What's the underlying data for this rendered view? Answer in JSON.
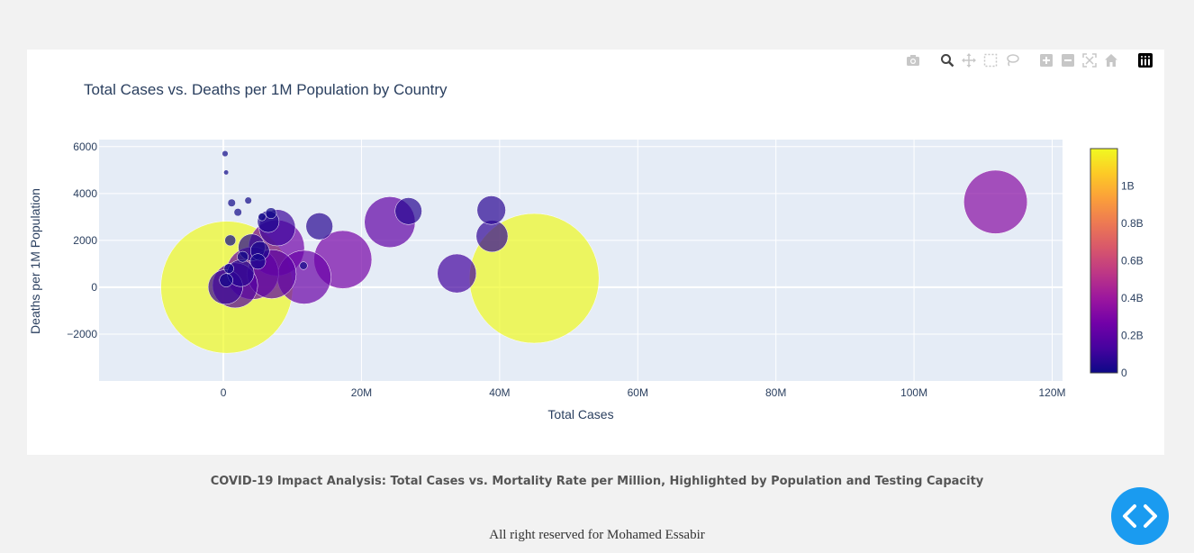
{
  "chart_data": {
    "type": "scatter",
    "title": "Total Cases vs. Deaths per 1M Population by Country",
    "xlabel": "Total Cases",
    "ylabel": "Deaths per 1M Population",
    "xlim": [
      -18000000,
      121500000
    ],
    "ylim": [
      -4000,
      6300
    ],
    "x_ticks": [
      0,
      20000000,
      40000000,
      60000000,
      80000000,
      100000000,
      120000000
    ],
    "x_tick_labels": [
      "0",
      "20M",
      "40M",
      "60M",
      "80M",
      "100M",
      "120M"
    ],
    "y_ticks": [
      -2000,
      0,
      2000,
      4000,
      6000
    ],
    "y_tick_labels": [
      "−2000",
      "0",
      "2000",
      "4000",
      "6000"
    ],
    "grid": true,
    "colorbar": {
      "range": [
        0,
        1200000000
      ],
      "ticks": [
        0,
        200000000,
        400000000,
        600000000,
        800000000,
        1000000000
      ],
      "tick_labels": [
        "0",
        "0.2B",
        "0.4B",
        "0.6B",
        "0.8B",
        "1B"
      ]
    },
    "marker_size_max_population": 1400000000,
    "points": [
      {
        "x": 111800000,
        "y": 3640,
        "population": 335000000
      },
      {
        "x": 45000000,
        "y": 380,
        "population": 1400000000
      },
      {
        "x": 500000,
        "y": 0,
        "population": 1450000000
      },
      {
        "x": 38800000,
        "y": 3290,
        "population": 68000000
      },
      {
        "x": 38900000,
        "y": 2180,
        "population": 84000000
      },
      {
        "x": 33800000,
        "y": 590,
        "population": 126000000
      },
      {
        "x": 24100000,
        "y": 2780,
        "population": 215000000
      },
      {
        "x": 26800000,
        "y": 3250,
        "population": 60000000
      },
      {
        "x": 17300000,
        "y": 1180,
        "population": 280000000
      },
      {
        "x": 13900000,
        "y": 2600,
        "population": 60000000
      },
      {
        "x": 11700000,
        "y": 430,
        "population": 240000000
      },
      {
        "x": 11600000,
        "y": 920,
        "population": 5000000
      },
      {
        "x": 7000000,
        "y": 560,
        "population": 200000000
      },
      {
        "x": 7800000,
        "y": 2540,
        "population": 110000000
      },
      {
        "x": 7700000,
        "y": 1680,
        "population": 260000000
      },
      {
        "x": 6900000,
        "y": 3160,
        "population": 10000000
      },
      {
        "x": 6500000,
        "y": 2800,
        "population": 39000000
      },
      {
        "x": 5300000,
        "y": 1550,
        "population": 30000000
      },
      {
        "x": 4200000,
        "y": 600,
        "population": 230000000
      },
      {
        "x": 4100000,
        "y": 1700,
        "population": 60000000
      },
      {
        "x": 2500000,
        "y": 600,
        "population": 60000000
      },
      {
        "x": 1700000,
        "y": 80,
        "population": 170000000
      },
      {
        "x": 300000,
        "y": 10,
        "population": 100000000
      },
      {
        "x": 250000,
        "y": 5700,
        "population": 3000000
      },
      {
        "x": 400000,
        "y": 4900,
        "population": 2000000
      },
      {
        "x": 1200000,
        "y": 3600,
        "population": 5000000
      },
      {
        "x": 3600000,
        "y": 3700,
        "population": 4000000
      },
      {
        "x": 5600000,
        "y": 3000,
        "population": 5000000
      },
      {
        "x": 2100000,
        "y": 3200,
        "population": 5000000
      },
      {
        "x": 1000000,
        "y": 2000,
        "population": 10000000
      },
      {
        "x": 2800000,
        "y": 1300,
        "population": 10000000
      },
      {
        "x": 400000,
        "y": 300,
        "population": 15000000
      },
      {
        "x": 800000,
        "y": 800,
        "population": 8000000
      },
      {
        "x": 5000000,
        "y": 1100,
        "population": 20000000
      }
    ]
  },
  "modebar": {
    "icons": [
      "camera-icon",
      "zoom-icon",
      "pan-icon",
      "box-select-icon",
      "lasso-select-icon",
      "zoom-in-icon",
      "zoom-out-icon",
      "autoscale-icon",
      "reset-axes-icon",
      "plotly-logo-icon"
    ]
  },
  "caption": "COVID-19 Impact Analysis: Total Cases vs. Mortality Rate per Million, Highlighted by Population and Testing Capacity",
  "footer": "All right reserved for Mohamed Essabir",
  "colors": {
    "plot_bg": "#e5ecf6",
    "page_bg": "#f2f2f2",
    "text": "#2a3f5f",
    "code_button": "#1a9bf0",
    "colorscale": [
      "#0d0887",
      "#46039f",
      "#7201a8",
      "#9c179e",
      "#bd3786",
      "#d8576b",
      "#ed7953",
      "#fb9f3a",
      "#fdca26",
      "#f0f921"
    ]
  }
}
